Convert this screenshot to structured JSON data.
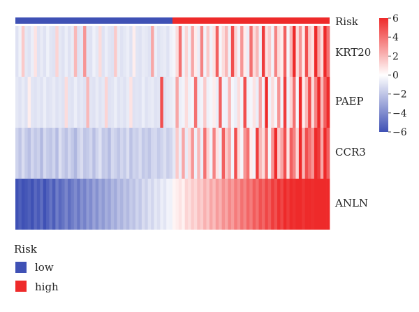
{
  "chart_data": {
    "type": "heatmap",
    "title": "",
    "annotation": {
      "name": "Risk",
      "groups": [
        {
          "label": "low",
          "color": "#3f51b5"
        },
        {
          "label": "high",
          "color": "#ee2a2a"
        }
      ],
      "low_count": 51,
      "high_count": 51
    },
    "rows": [
      "KRT20",
      "PAEP",
      "CCR3",
      "ANLN"
    ],
    "colorbar": {
      "ticks": [
        6,
        4,
        2,
        0,
        -2,
        -4,
        -6
      ],
      "tick_labels": [
        "6",
        "4",
        "2",
        "0",
        "−2",
        "−4",
        "−6"
      ],
      "range": [
        -6,
        6
      ],
      "colors": {
        "low": "#3f51b5",
        "mid": "#ffffff",
        "high": "#ee2a2a"
      }
    },
    "values": [
      [
        -1,
        -0.5,
        1.5,
        -0.8,
        -1,
        -0.6,
        0.8,
        -1,
        -0.7,
        -1,
        -0.5,
        -0.9,
        -1,
        1.2,
        -0.8,
        -1,
        -0.6,
        -1,
        -0.7,
        2,
        -1,
        -0.8,
        3,
        -0.9,
        -1,
        -0.5,
        -0.8,
        1,
        -1,
        -0.6,
        -0.9,
        -1,
        1.5,
        -0.7,
        -1,
        -0.8,
        -0.6,
        -1,
        0.5,
        -0.9,
        -1,
        -0.7,
        -0.8,
        -1,
        2.5,
        -0.6,
        -1,
        -0.8,
        -0.7,
        -1,
        -0.5,
        -0.3,
        1,
        4,
        -0.4,
        1.2,
        -0.5,
        2.5,
        0.5,
        -0.6,
        3.5,
        -0.4,
        1.5,
        -0.5,
        0.8,
        4.5,
        -0.3,
        1,
        2,
        -0.5,
        5,
        1.2,
        -0.4,
        3,
        0.5,
        -0.6,
        4,
        1,
        2,
        -0.5,
        5.5,
        0.8,
        1.5,
        -0.4,
        3.5,
        1,
        0.5,
        4.5,
        -0.3,
        2,
        6,
        1,
        3,
        0.5,
        5,
        1.5,
        0.8,
        6,
        2.5,
        1,
        6,
        4
      ],
      [
        -0.8,
        -1,
        -0.7,
        -1,
        0.5,
        -0.9,
        -1,
        -0.8,
        -1,
        -0.6,
        -1,
        -0.9,
        -0.7,
        -1,
        -0.8,
        -1,
        1,
        -0.9,
        -1,
        -0.6,
        -1,
        -0.8,
        -1,
        2,
        -0.9,
        -1,
        -0.7,
        -1,
        -0.8,
        1.2,
        -1,
        -0.9,
        -0.6,
        -1,
        -0.8,
        -1,
        -0.7,
        0.8,
        -1,
        -0.9,
        -1,
        -0.6,
        -1,
        -0.8,
        -0.7,
        -1,
        -0.9,
        5,
        -1,
        -0.8,
        -0.7,
        -0.5,
        2.5,
        -0.6,
        -0.4,
        1,
        -0.5,
        -0.3,
        4,
        -0.6,
        -0.4,
        1.5,
        -0.5,
        -0.3,
        0.5,
        -0.6,
        4.5,
        -0.4,
        -0.5,
        2,
        -0.3,
        -0.6,
        1,
        -0.4,
        5,
        -0.5,
        -0.3,
        0.8,
        -0.6,
        2.5,
        -0.4,
        6,
        -0.5,
        1,
        -0.3,
        3,
        -0.4,
        5.5,
        -0.5,
        1.2,
        4,
        -0.3,
        6,
        0.5,
        2,
        5,
        1,
        3.5,
        6,
        2,
        4.5,
        6
      ],
      [
        -1.5,
        -2,
        -1.2,
        -1.8,
        -2.2,
        -1.4,
        -1.9,
        -1.6,
        -2.4,
        -1.3,
        -1.8,
        -2,
        -1.5,
        -2.3,
        -1.1,
        -1.7,
        -2.1,
        -1.4,
        -1.9,
        -2.5,
        -1.6,
        -1.2,
        -2,
        -1.8,
        -1.4,
        -2.2,
        -1.5,
        -1,
        -1.9,
        -1.7,
        -2.3,
        -1.3,
        -1.6,
        -2,
        -1.4,
        -1.8,
        -1.1,
        -2.1,
        -1.5,
        -1.7,
        -1.2,
        -1.9,
        -1.6,
        -2,
        -1.4,
        -1.3,
        -1.8,
        -1.5,
        -1.1,
        -1.7,
        -1.4,
        -0.8,
        1.5,
        -0.6,
        2.5,
        -0.7,
        1,
        3,
        -0.5,
        2,
        -0.6,
        4,
        1.2,
        -0.4,
        3.5,
        0.8,
        -0.5,
        4.5,
        1.5,
        2.5,
        -0.4,
        5,
        1,
        -0.3,
        3,
        4,
        0.5,
        -0.4,
        5.5,
        2,
        1,
        4,
        -0.3,
        3,
        6,
        1.5,
        2.5,
        5,
        0.8,
        4.5,
        3.5,
        1.2,
        6,
        2,
        5,
        4,
        3,
        6,
        5.5,
        2.5,
        6,
        4.5
      ],
      [
        -6,
        -5.5,
        -6,
        -5.8,
        -5.5,
        -6,
        -5.2,
        -5.7,
        -5,
        -6,
        -5.4,
        -4.8,
        -5.6,
        -4.5,
        -5.2,
        -4.8,
        -4.2,
        -5,
        -4.5,
        -4,
        -4.7,
        -3.8,
        -4.3,
        -3.5,
        -4,
        -3.2,
        -3.8,
        -3,
        -3.5,
        -2.8,
        -3.2,
        -2.5,
        -2.9,
        -2.2,
        -2.6,
        -2,
        -2.4,
        -1.8,
        -2.1,
        -1.5,
        -1.9,
        -1.2,
        -1.6,
        -1,
        -1.4,
        -0.8,
        -1.1,
        -0.6,
        -0.9,
        -0.4,
        -0.5,
        0.3,
        0.5,
        0.8,
        0.4,
        1.2,
        0.9,
        1.5,
        1.1,
        1.8,
        1.4,
        2.2,
        1.6,
        2.5,
        1.9,
        2.8,
        2.2,
        3.1,
        2.5,
        3.4,
        2.8,
        3.7,
        3.1,
        4,
        3.4,
        4.3,
        3.7,
        4.6,
        4,
        4.9,
        4.3,
        5.2,
        4.6,
        5.5,
        4.9,
        5.8,
        5.2,
        6,
        5.5,
        6,
        5.8,
        6,
        6,
        5.7,
        6,
        6,
        5.9,
        6,
        6,
        6,
        6,
        6
      ]
    ]
  },
  "legend": {
    "title": "Risk",
    "items": [
      {
        "label": "low",
        "color": "#3f51b5"
      },
      {
        "label": "high",
        "color": "#ee2a2a"
      }
    ]
  }
}
